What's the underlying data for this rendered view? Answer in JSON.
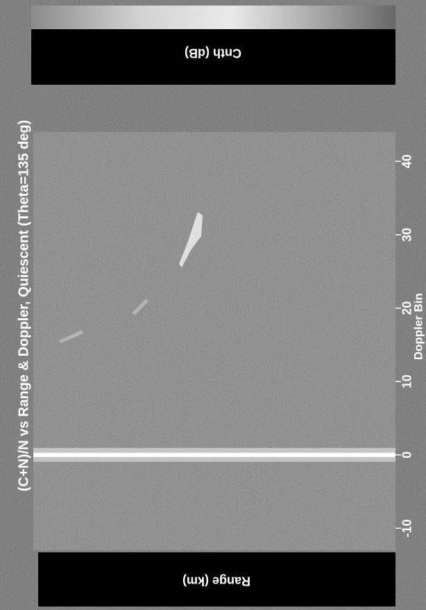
{
  "chart_data": {
    "type": "heatmap",
    "title": "(C+N)/N vs Range & Doppler, Quiescent (Theta=135 deg)",
    "xlabel": "Doppler Bin",
    "ylabel": "Range (km)",
    "colorbar_label": "Cnth (dB)",
    "xlim": [
      -13,
      44
    ],
    "xticks": [
      -10,
      0,
      10,
      20,
      30,
      40
    ]
  }
}
